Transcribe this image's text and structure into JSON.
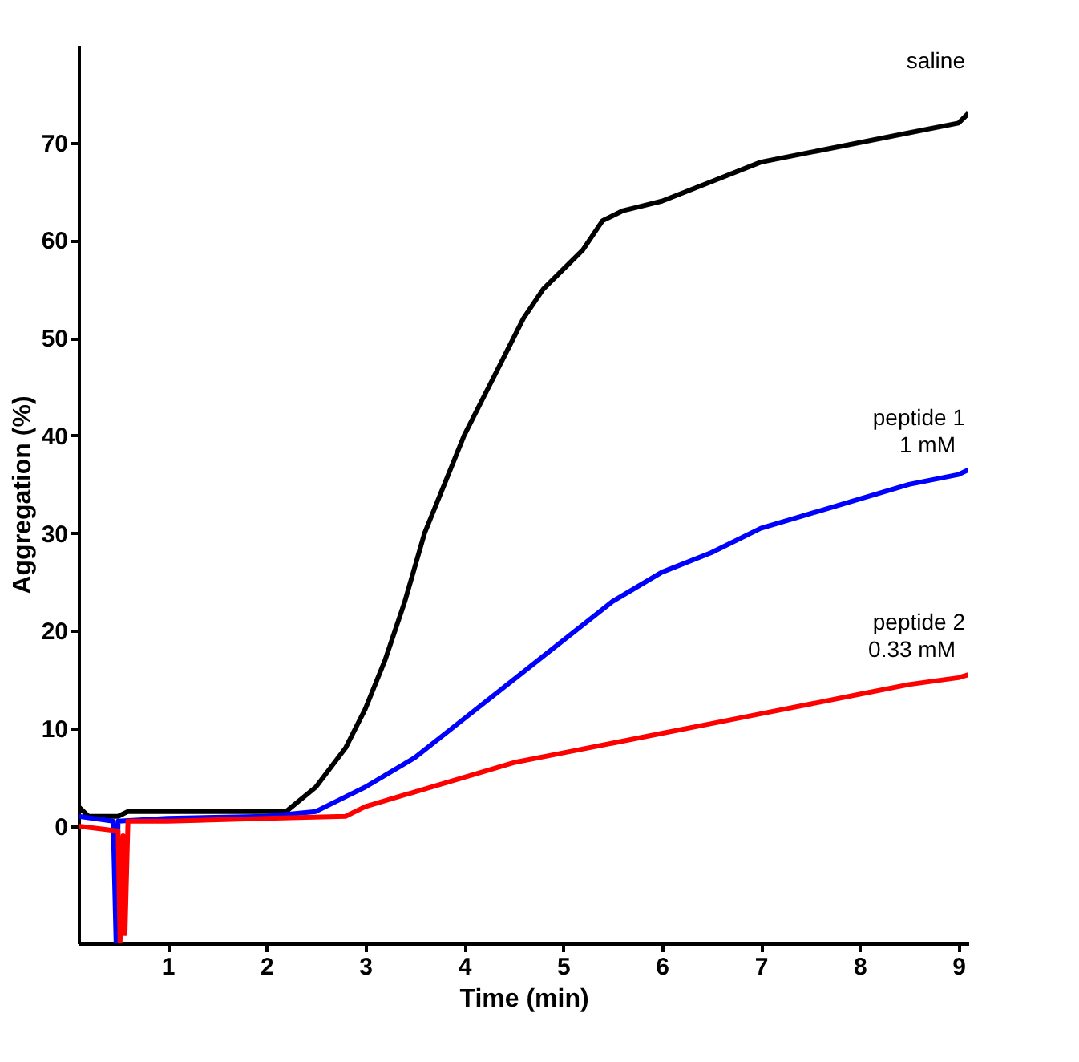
{
  "chart_data": {
    "type": "line",
    "xlabel": "Time (min)",
    "ylabel": "Aggregation (%)",
    "xlim": [
      0.1,
      9.1
    ],
    "xticks": [
      1,
      2,
      3,
      4,
      5,
      6,
      7,
      8,
      9
    ],
    "ylim": [
      -12,
      80
    ],
    "yticks": [
      0,
      10,
      20,
      30,
      40,
      50,
      60,
      70
    ],
    "grid": false,
    "marker": "none",
    "line_style": "solid",
    "series": [
      {
        "name": "saline",
        "color": "#000000",
        "x": [
          0.1,
          0.2,
          0.5,
          0.6,
          1,
          2,
          2.2,
          2.5,
          2.8,
          3,
          3.2,
          3.4,
          3.6,
          3.8,
          4,
          4.2,
          4.4,
          4.6,
          4.8,
          5,
          5.2,
          5.4,
          5.6,
          6,
          6.5,
          7,
          7.5,
          8,
          8.5,
          9,
          9.1
        ],
        "values": [
          2,
          1,
          1,
          1.5,
          1.5,
          1.5,
          1.5,
          4,
          8,
          12,
          17,
          23,
          30,
          35,
          40,
          44,
          48,
          52,
          55,
          57,
          59,
          62,
          63,
          64,
          66,
          68,
          69,
          70,
          71,
          72,
          73
        ]
      },
      {
        "name": "peptide 1",
        "color": "#0000ff",
        "x": [
          0.1,
          0.45,
          0.48,
          0.5,
          1,
          2,
          2.5,
          2.8,
          3,
          3.5,
          4,
          4.5,
          5,
          5.5,
          6,
          6.5,
          7,
          7.5,
          8,
          8.5,
          9,
          9.1
        ],
        "values": [
          1,
          0.5,
          -12,
          0.5,
          0.8,
          1,
          1.5,
          3,
          4,
          7,
          11,
          15,
          19,
          23,
          26,
          28,
          30.5,
          32,
          33.5,
          35,
          36,
          36.5
        ]
      },
      {
        "name": "peptide 2",
        "color": "#ff0000",
        "x": [
          0.1,
          0.5,
          0.52,
          0.55,
          0.57,
          0.6,
          1,
          2,
          2.8,
          3,
          3.5,
          4,
          4.5,
          5,
          5.5,
          6,
          6.5,
          7,
          7.5,
          8,
          8.5,
          9,
          9.1
        ],
        "values": [
          0,
          -0.5,
          -12,
          -1,
          -11,
          0.5,
          0.5,
          0.8,
          1,
          2,
          3.5,
          5,
          6.5,
          7.5,
          8.5,
          9.5,
          10.5,
          11.5,
          12.5,
          13.5,
          14.5,
          15.2,
          15.5
        ]
      }
    ],
    "annotations": [
      {
        "text": "1 mM",
        "x": 9.1,
        "y": 36.5
      },
      {
        "text": "0.33 mM",
        "x": 9.1,
        "y": 15.5
      }
    ]
  }
}
